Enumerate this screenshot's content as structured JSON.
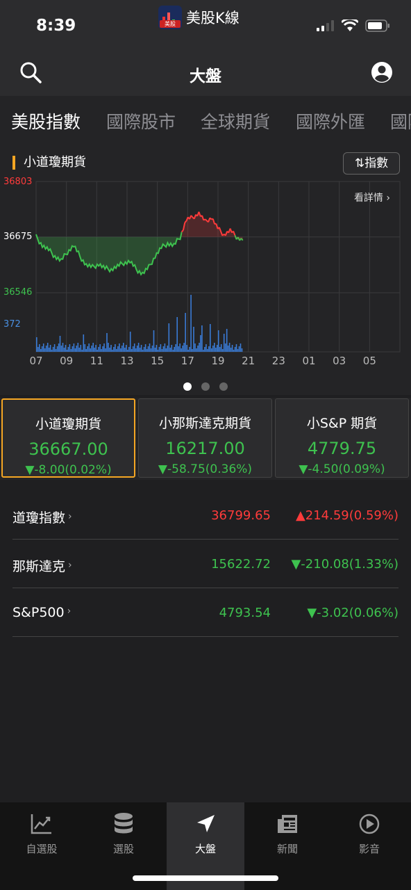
{
  "status": {
    "time": "8:39",
    "app_name": "美股K線",
    "app_logo_text": "美股"
  },
  "header": {
    "title": "大盤"
  },
  "tabs": [
    {
      "label": "美股指數"
    },
    {
      "label": "國際股市"
    },
    {
      "label": "全球期貨"
    },
    {
      "label": "國際外匯"
    },
    {
      "label": "國際"
    }
  ],
  "chart": {
    "name": "小道瓊期貨",
    "toggle_label": "⇅指數",
    "detail_label": "看詳情 ›",
    "y_high": "36803",
    "y_mid": "36675",
    "y_low": "36546",
    "vol_label": "372",
    "x_ticks": [
      "07",
      "09",
      "11",
      "13",
      "15",
      "17",
      "19",
      "21",
      "23",
      "01",
      "03",
      "05"
    ],
    "colors": {
      "up": "#ff3b3b",
      "down": "#3ec24f",
      "volume": "#3a7bd5"
    }
  },
  "chart_data": {
    "type": "line",
    "title": "小道瓊期貨",
    "reference": 36675,
    "ylim": [
      36546,
      36803
    ],
    "x_ticks": [
      "07",
      "09",
      "11",
      "13",
      "15",
      "17",
      "19",
      "21",
      "23",
      "01",
      "03",
      "05"
    ],
    "price_series": [
      36675,
      36655,
      36645,
      36630,
      36620,
      36640,
      36655,
      36630,
      36610,
      36605,
      36612,
      36602,
      36600,
      36607,
      36615,
      36618,
      36600,
      36590,
      36605,
      36630,
      36650,
      36660,
      36655,
      36675,
      36715,
      36720,
      36730,
      36710,
      36720,
      36695,
      36680,
      36690,
      36675,
      36667
    ],
    "volume_max": 372
  },
  "cards": [
    {
      "name": "小道瓊期貨",
      "value": "36667.00",
      "change": "▼-8.00(0.02%)"
    },
    {
      "name": "小那斯達克期貨",
      "value": "16217.00",
      "change": "▼-58.75(0.36%)"
    },
    {
      "name": "小S&P 期貨",
      "value": "4779.75",
      "change": "▼-4.50(0.09%)"
    }
  ],
  "indices": [
    {
      "name": "道瓊指數",
      "value": "36799.65",
      "change": "▲214.59(0.59%)"
    },
    {
      "name": "那斯達克",
      "value": "15622.72",
      "change": "▼-210.08(1.33%)"
    },
    {
      "name": "S&P500",
      "value": "4793.54",
      "change": "▼-3.02(0.06%)"
    }
  ],
  "nav": [
    {
      "label": "自選股",
      "icon": "chart-icon"
    },
    {
      "label": "選股",
      "icon": "database-icon"
    },
    {
      "label": "大盤",
      "icon": "location-arrow-icon"
    },
    {
      "label": "新聞",
      "icon": "newspaper-icon"
    },
    {
      "label": "影音",
      "icon": "play-circle-icon"
    }
  ]
}
